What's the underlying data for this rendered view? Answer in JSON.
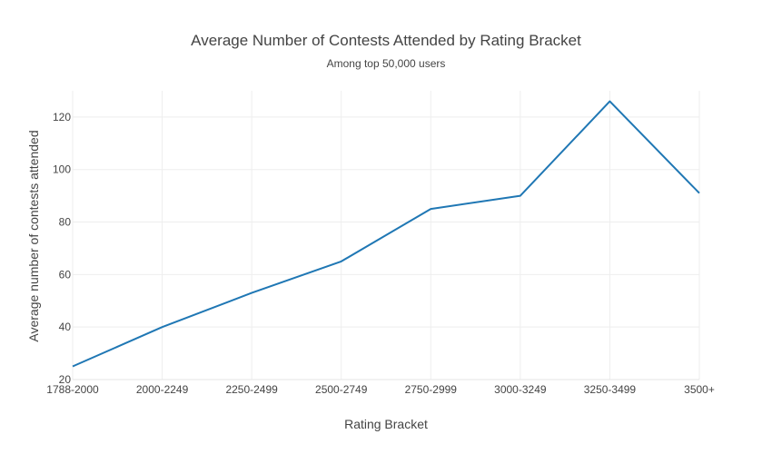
{
  "chart_data": {
    "type": "line",
    "title": "Average Number of Contests Attended by Rating Bracket",
    "subtitle": "Among top 50,000 users",
    "xlabel": "Rating Bracket",
    "ylabel": "Average number of contests attended",
    "categories": [
      "1788-2000",
      "2000-2249",
      "2250-2499",
      "2500-2749",
      "2750-2999",
      "3000-3249",
      "3250-3499",
      "3500+"
    ],
    "series": [
      {
        "values": [
          25,
          40,
          53,
          65,
          85,
          90,
          126,
          91
        ],
        "color": "#1f77b4"
      }
    ],
    "ylim": [
      20,
      130
    ],
    "yticks": [
      20,
      40,
      60,
      80,
      100,
      120
    ],
    "grid": true,
    "legend": "none"
  }
}
